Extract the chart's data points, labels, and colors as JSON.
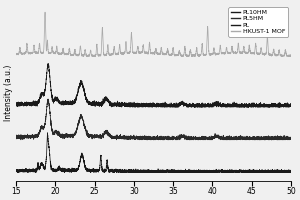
{
  "title": "",
  "xlabel": "",
  "ylabel": "Intensity (a.u.)",
  "xlim": [
    15,
    50
  ],
  "x_ticks": [
    15,
    20,
    25,
    30,
    35,
    40,
    45,
    50
  ],
  "legend_labels": [
    "PL10HM",
    "PL5HM",
    "PL",
    "HKUST-1 MOF"
  ],
  "legend_colors": [
    "#1a1a1a",
    "#2a2a2a",
    "#1a1a1a",
    "#aaaaaa"
  ],
  "offsets": [
    2.2,
    1.55,
    0.9,
    3.2
  ],
  "line_colors": [
    "#1a1a1a",
    "#2a2a2a",
    "#1a1a1a",
    "#aaaaaa"
  ],
  "background": "#f0f0f0"
}
